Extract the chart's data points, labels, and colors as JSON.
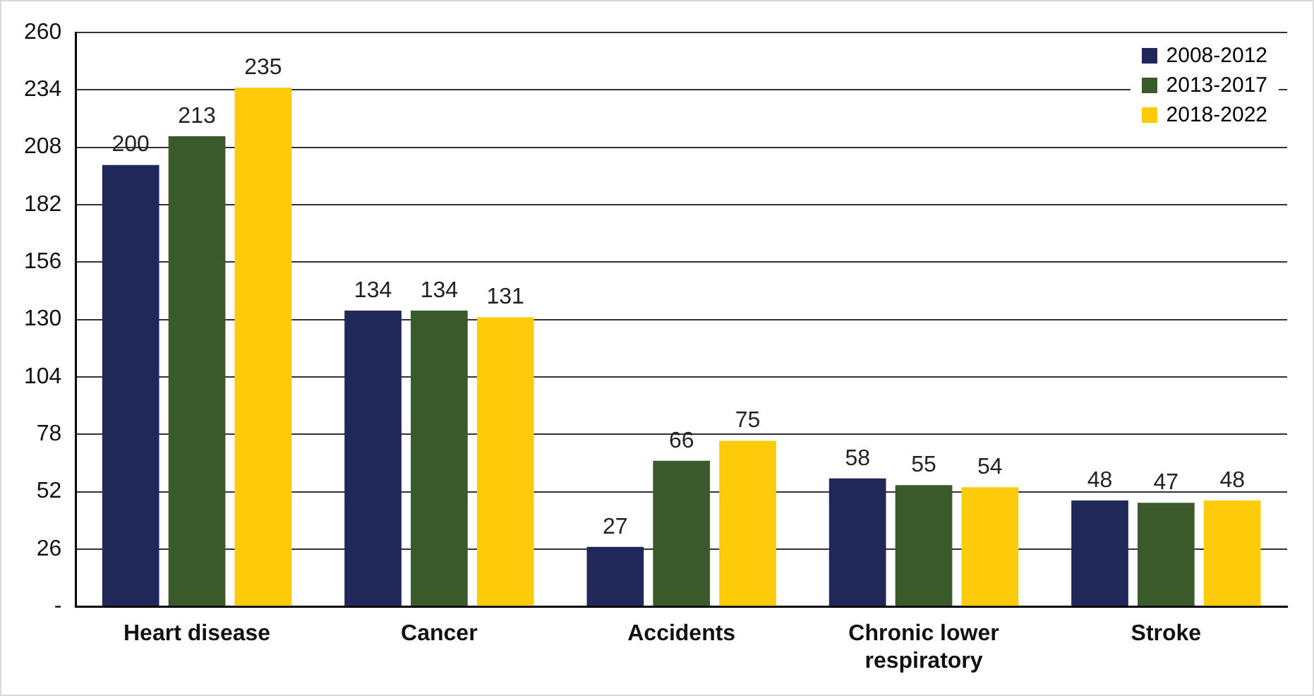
{
  "chart_data": {
    "type": "bar",
    "categories": [
      "Heart disease",
      "Cancer",
      "Accidents",
      "Chronic lower respiratory",
      "Stroke"
    ],
    "series": [
      {
        "name": "2008-2012",
        "color": "#1f2858",
        "values": [
          200,
          134,
          27,
          58,
          48
        ]
      },
      {
        "name": "2013-2017",
        "color": "#3b5a2c",
        "values": [
          213,
          134,
          66,
          55,
          47
        ]
      },
      {
        "name": "2018-2022",
        "color": "#fecb0a",
        "values": [
          235,
          131,
          75,
          54,
          48
        ]
      }
    ],
    "ylim": [
      0,
      260
    ],
    "yticks": [
      {
        "value": 0,
        "label": "-"
      },
      26,
      52,
      78,
      104,
      130,
      156,
      182,
      208,
      234,
      260
    ],
    "grid": "y",
    "legend": "top right",
    "data_labels": true
  }
}
